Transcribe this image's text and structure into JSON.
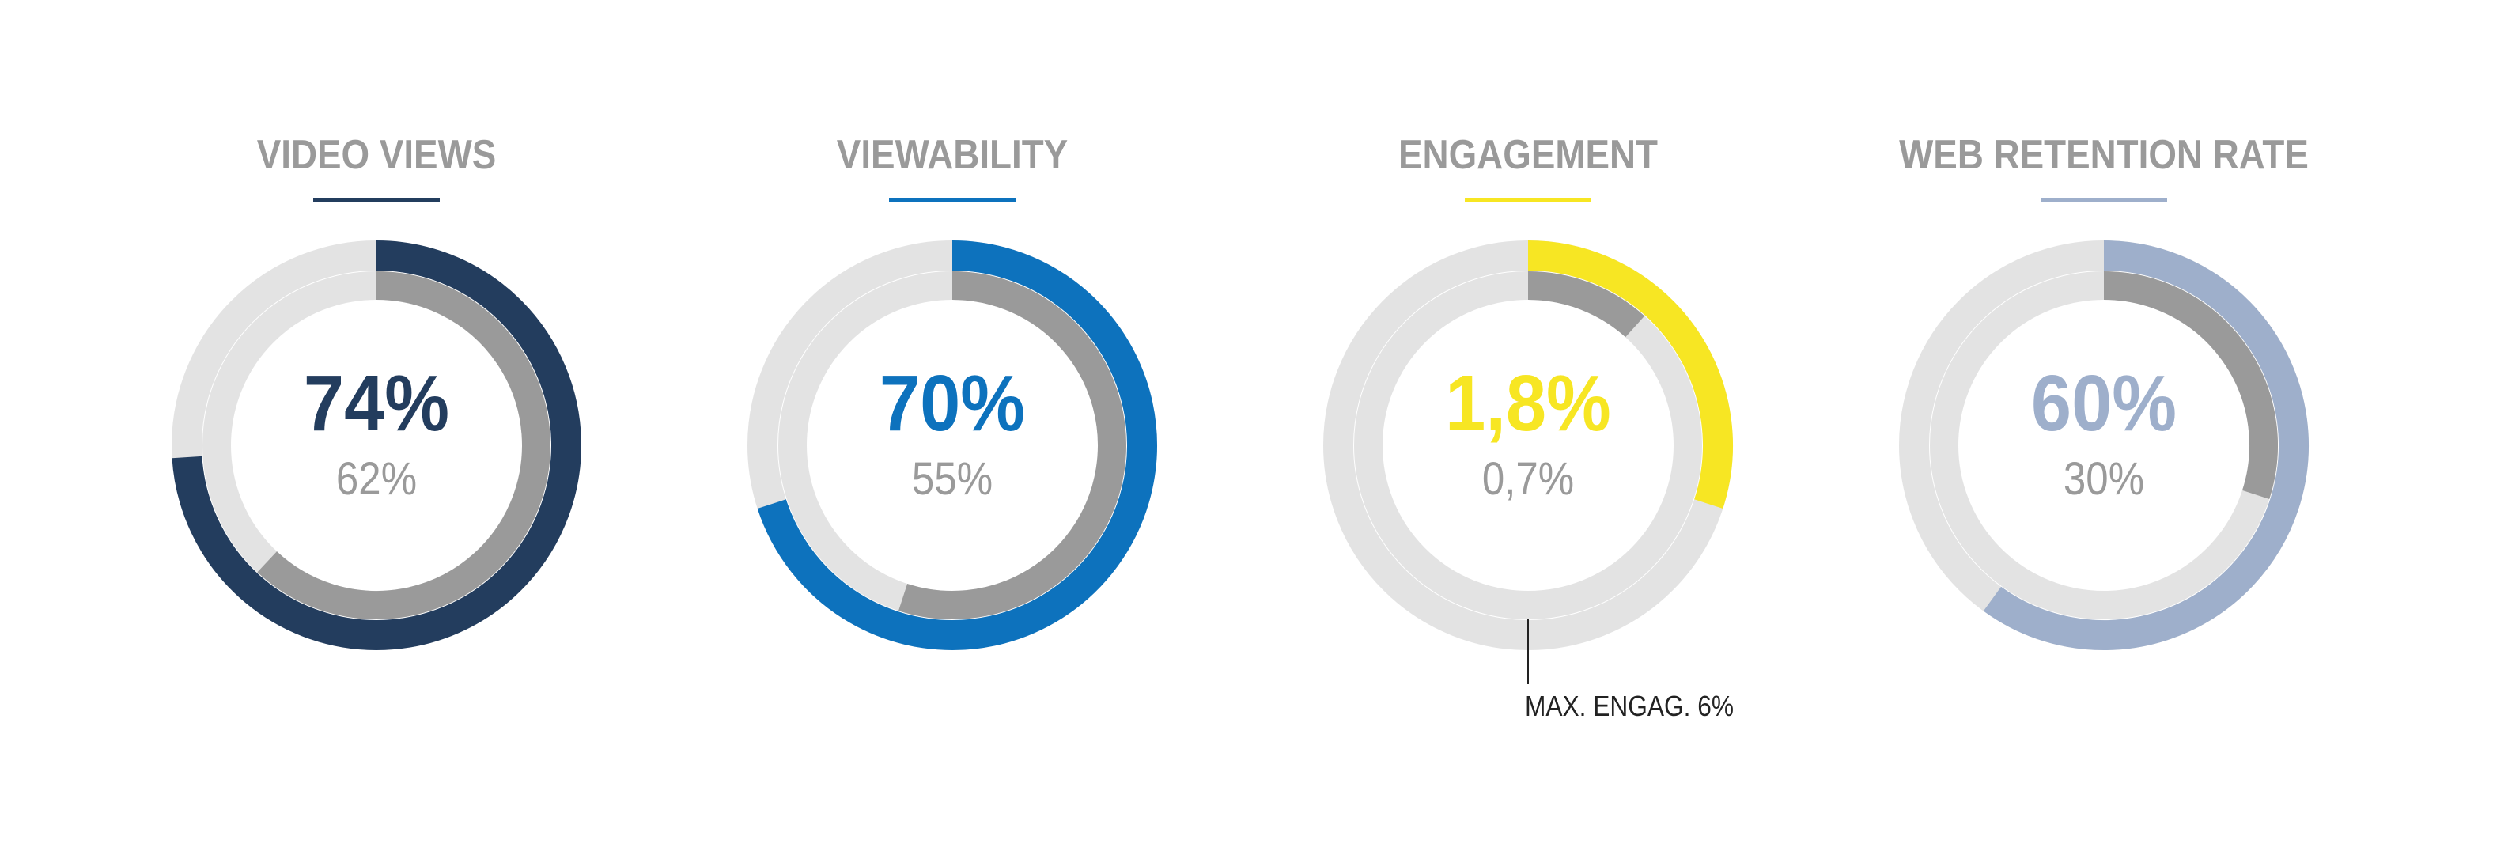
{
  "chart_data": [
    {
      "type": "donut",
      "title": "VIDEO VIEWS",
      "primary_label": "74%",
      "secondary_label": "62%",
      "primary_value": 74,
      "secondary_value": 62,
      "scale_max": 100,
      "primary_color": "#233d5e",
      "secondary_color": "#9a9a9a",
      "track_color": "#e3e3e3"
    },
    {
      "type": "donut",
      "title": "VIEWABILITY",
      "primary_label": "70%",
      "secondary_label": "55%",
      "primary_value": 70,
      "secondary_value": 55,
      "scale_max": 100,
      "primary_color": "#0d72bd",
      "secondary_color": "#9a9a9a",
      "track_color": "#e3e3e3"
    },
    {
      "type": "donut",
      "title": "ENGAGEMENT",
      "primary_label": "1,8%",
      "secondary_label": "0,7%",
      "primary_value": 1.8,
      "secondary_value": 0.7,
      "scale_max": 6,
      "scale_note": "MAX. ENGAG. 6%",
      "primary_color": "#f7e623",
      "secondary_color": "#9a9a9a",
      "track_color": "#e3e3e3"
    },
    {
      "type": "donut",
      "title": "WEB RETENTION RATE",
      "primary_label": "60%",
      "secondary_label": "30%",
      "primary_value": 60,
      "secondary_value": 30,
      "scale_max": 100,
      "primary_color": "#9eafcb",
      "secondary_color": "#9a9a9a",
      "track_color": "#e3e3e3"
    }
  ]
}
